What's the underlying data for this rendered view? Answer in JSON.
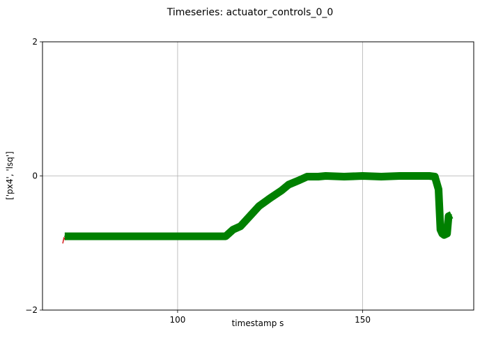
{
  "chart_data": {
    "type": "line",
    "title": "Timeseries: actuator_controls_0_0",
    "xlabel": "timestamp s",
    "ylabel": "['px4', 'lsq']",
    "xlim": [
      63.5,
      180
    ],
    "ylim": [
      -2,
      2
    ],
    "xticks": [
      "100",
      "150"
    ],
    "yticks": [
      "-2",
      "0",
      "2"
    ],
    "grid": true,
    "series": [
      {
        "color": "#d62728",
        "x": [
          69.0,
          69.3,
          69.6,
          70.0
        ],
        "y": [
          -1.0,
          -0.92,
          -0.95,
          -0.9
        ]
      },
      {
        "color": "#008000",
        "x": [
          69.5,
          75,
          80,
          85,
          90,
          95,
          100,
          105,
          110,
          113,
          115,
          117,
          120,
          122,
          125,
          128,
          130,
          133,
          135,
          138,
          140,
          145,
          150,
          155,
          160,
          165,
          168,
          169.5,
          170.5,
          171.0,
          171.5,
          172.0,
          172.8,
          173.2,
          174.0
        ],
        "y": [
          -0.9,
          -0.9,
          -0.9,
          -0.9,
          -0.9,
          -0.9,
          -0.9,
          -0.9,
          -0.9,
          -0.9,
          -0.8,
          -0.75,
          -0.57,
          -0.45,
          -0.33,
          -0.22,
          -0.13,
          -0.06,
          -0.01,
          -0.01,
          0.0,
          -0.01,
          0.0,
          -0.01,
          0.0,
          0.0,
          0.0,
          -0.01,
          -0.2,
          -0.8,
          -0.86,
          -0.88,
          -0.86,
          -0.6,
          -0.58
        ]
      }
    ]
  }
}
